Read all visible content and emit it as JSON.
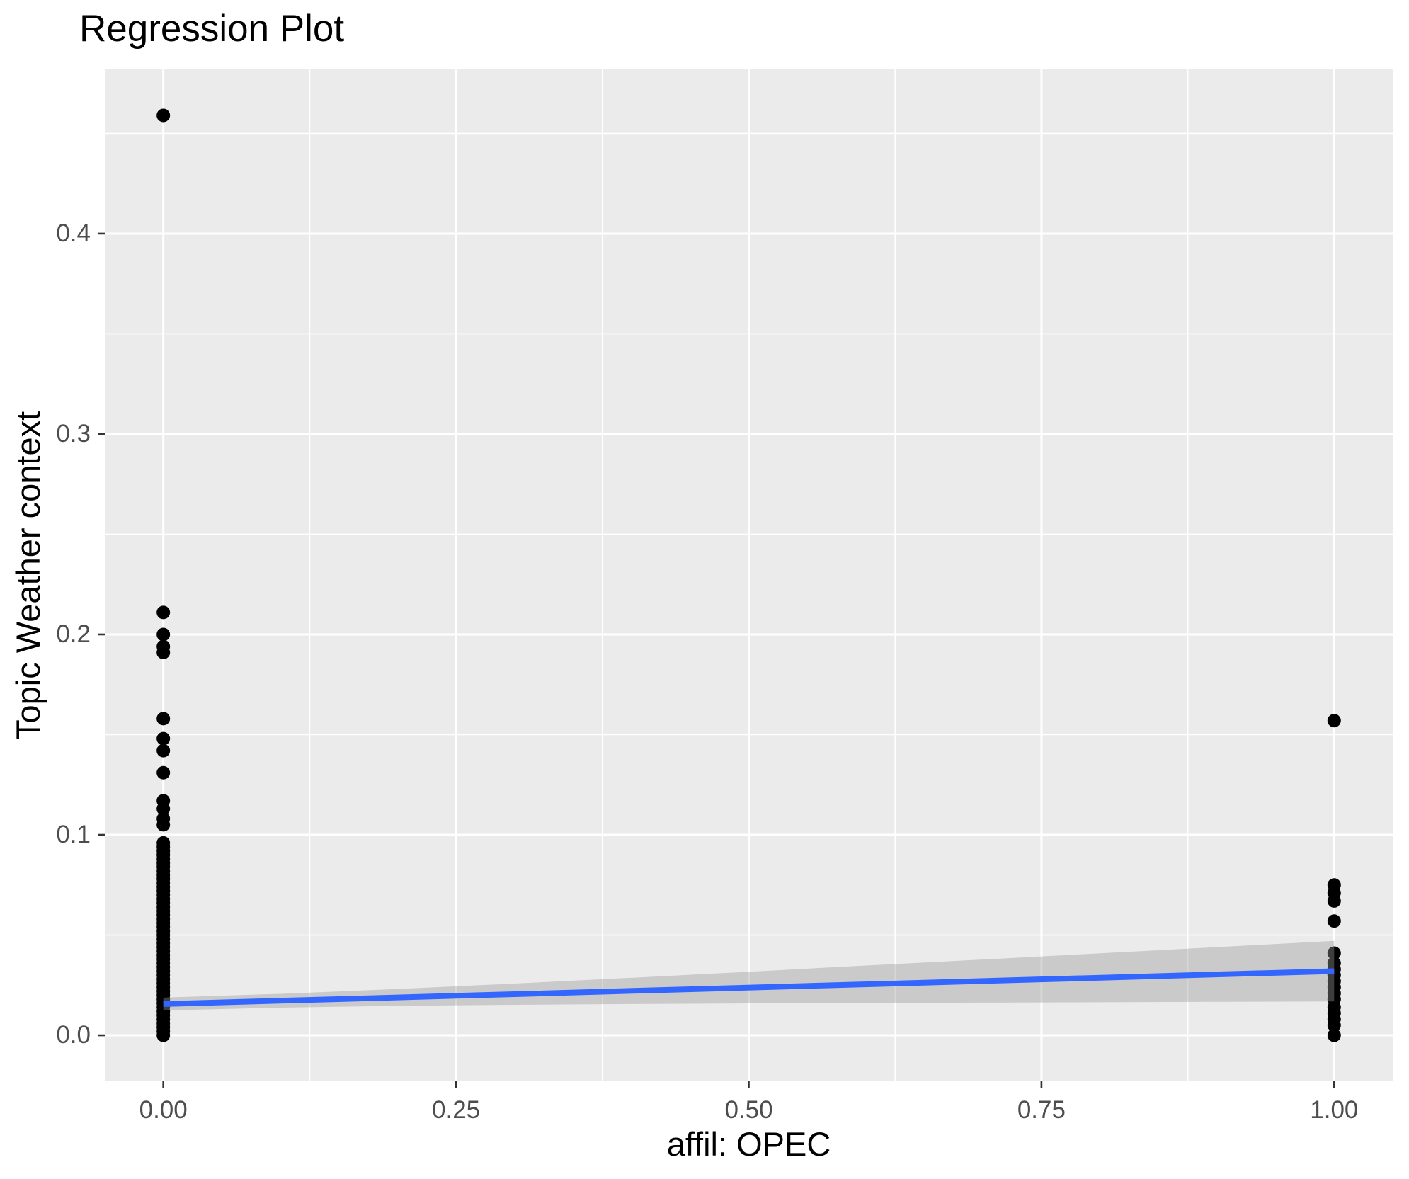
{
  "chart_data": {
    "type": "scatter",
    "title": "Regression Plot",
    "xlabel": "affil: OPEC",
    "ylabel": "Topic Weather context",
    "xlim": [
      -0.05,
      1.05
    ],
    "ylim": [
      -0.02295,
      0.48195
    ],
    "x_ticks": {
      "values": [
        0,
        0.25,
        0.5,
        0.75,
        1.0
      ],
      "labels": [
        "0.00",
        "0.25",
        "0.50",
        "0.75",
        "1.00"
      ]
    },
    "y_ticks": {
      "values": [
        0,
        0.1,
        0.2,
        0.3,
        0.4
      ],
      "labels": [
        "0.0",
        "0.1",
        "0.2",
        "0.3",
        "0.4"
      ]
    },
    "x_minor": [
      0.125,
      0.375,
      0.625,
      0.875
    ],
    "y_minor": [
      0.05,
      0.15,
      0.25,
      0.35,
      0.45
    ],
    "grid": true,
    "legend": "none",
    "series": [
      {
        "name": "affil OPEC = 0",
        "x": 0,
        "y": [
          0.459,
          0.211,
          0.2,
          0.194,
          0.191,
          0.158,
          0.148,
          0.142,
          0.131,
          0.117,
          0.113,
          0.108,
          0.105,
          0.096,
          0.094,
          0.092,
          0.09,
          0.088,
          0.086,
          0.084,
          0.082,
          0.08,
          0.078,
          0.076,
          0.074,
          0.072,
          0.07,
          0.068,
          0.066,
          0.064,
          0.062,
          0.06,
          0.058,
          0.056,
          0.054,
          0.052,
          0.05,
          0.048,
          0.046,
          0.044,
          0.042,
          0.04,
          0.038,
          0.036,
          0.034,
          0.032,
          0.03,
          0.028,
          0.026,
          0.024,
          0.022,
          0.02,
          0.018,
          0.016,
          0.014,
          0.012,
          0.01,
          0.008,
          0.006,
          0.004,
          0.002,
          0.0
        ]
      },
      {
        "name": "affil OPEC = 1",
        "x": 1,
        "y": [
          0.157,
          0.075,
          0.071,
          0.067,
          0.057,
          0.041,
          0.036,
          0.033,
          0.03,
          0.027,
          0.024,
          0.021,
          0.018,
          0.014,
          0.011,
          0.008,
          0.005,
          0.0
        ]
      }
    ],
    "regression_line": {
      "x": [
        0,
        1
      ],
      "y": [
        0.0156,
        0.032
      ]
    },
    "confidence_band": {
      "x": [
        0,
        0.1,
        0.2,
        0.3,
        0.4,
        0.5,
        0.6,
        0.7,
        0.8,
        0.9,
        1.0
      ],
      "lower": [
        0.0124,
        0.0138,
        0.0147,
        0.0152,
        0.0156,
        0.0159,
        0.0161,
        0.0163,
        0.0165,
        0.0167,
        0.0169
      ],
      "upper": [
        0.0188,
        0.0207,
        0.0231,
        0.0258,
        0.0287,
        0.0317,
        0.0348,
        0.0378,
        0.0409,
        0.044,
        0.0471
      ]
    },
    "colors": {
      "panel_background": "#EBEBEB",
      "gridline": "#FFFFFF",
      "point": "#000000",
      "regression_line": "#3366FF",
      "confidence_band": "rgba(153,153,153,0.4)",
      "tick_mark": "#333333",
      "tick_label": "#4D4D4D",
      "text": "#000000"
    }
  }
}
